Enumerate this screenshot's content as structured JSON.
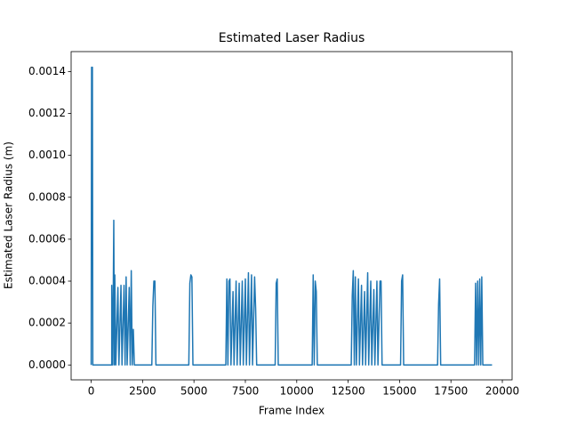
{
  "chart_data": {
    "type": "line",
    "title": "Estimated Laser Radius",
    "x_label": "Frame Index",
    "y_label": "Estimated Laser Radius (m)",
    "color": "#1f77b4",
    "x": [
      0,
      20,
      60,
      80,
      1000,
      1000,
      1050,
      1100,
      1130,
      1150,
      1200,
      1300,
      1350,
      1450,
      1500,
      1600,
      1650,
      1700,
      1750,
      1850,
      1900,
      1950,
      2000,
      2050,
      2100,
      2950,
      3000,
      3050,
      3100,
      3150,
      4750,
      4800,
      4850,
      4900,
      4950,
      6550,
      6600,
      6650,
      6700,
      6750,
      6800,
      6900,
      6950,
      7050,
      7100,
      7200,
      7250,
      7350,
      7400,
      7500,
      7550,
      7650,
      7700,
      7800,
      7850,
      7950,
      8000,
      8050,
      8950,
      9000,
      9050,
      9100,
      10750,
      10800,
      10850,
      10900,
      10950,
      11000,
      12650,
      12700,
      12750,
      12800,
      12850,
      12900,
      13000,
      13050,
      13150,
      13200,
      13300,
      13350,
      13450,
      13500,
      13600,
      13650,
      13750,
      13800,
      13900,
      13950,
      14050,
      14100,
      14150,
      15050,
      15100,
      15150,
      15200,
      16850,
      16900,
      16950,
      17000,
      18650,
      18700,
      18750,
      18800,
      18850,
      18900,
      18950,
      19000,
      19050,
      19500
    ],
    "values": [
      0,
      0.00142,
      0.00142,
      0,
      0,
      0.00038,
      0,
      0.00069,
      0,
      0.00043,
      0,
      0.00037,
      0,
      0.00038,
      0,
      0.00038,
      0,
      0.00042,
      0,
      0.00037,
      0,
      0.00045,
      0,
      0.00017,
      0,
      0,
      0.00028,
      0.0004,
      0.0004,
      0,
      0,
      0.00039,
      0.00043,
      0.00042,
      0,
      0,
      0.00041,
      0,
      0.0004,
      0.00041,
      0,
      0.00035,
      0,
      0.0004,
      0,
      0.00039,
      0,
      0.0004,
      0,
      0.00041,
      0,
      0.00044,
      0,
      0.00043,
      0,
      0.00042,
      0.00027,
      0,
      0,
      0.00039,
      0.00041,
      0,
      0,
      0.00043,
      0,
      0.0004,
      0.00035,
      0,
      0,
      0.00033,
      0.00045,
      0,
      0.00042,
      0,
      0.00041,
      0,
      0.00038,
      0,
      0.00035,
      0,
      0.00044,
      0,
      0.0004,
      0,
      0.00036,
      0,
      0.0004,
      0,
      0.0004,
      0.0004,
      0,
      0,
      0.0004,
      0.00043,
      0,
      0,
      0.00029,
      0.00041,
      0,
      0,
      0.00039,
      0,
      0.0004,
      0,
      0.00041,
      0,
      0.00042,
      0,
      0
    ],
    "xlim": [
      -975,
      20475
    ],
    "xticks": [
      0,
      2500,
      5000,
      7500,
      10000,
      12500,
      15000,
      17500,
      20000
    ],
    "ylim": [
      -7.1e-05,
      0.001495
    ],
    "yticks": [
      {
        "value": 0,
        "label": "0.0000"
      },
      {
        "value": 0.0002,
        "label": "0.0002"
      },
      {
        "value": 0.0004,
        "label": "0.0004"
      },
      {
        "value": 0.0006,
        "label": "0.0006"
      },
      {
        "value": 0.0008,
        "label": "0.0008"
      },
      {
        "value": 0.001,
        "label": "0.0010"
      },
      {
        "value": 0.0012,
        "label": "0.0012"
      },
      {
        "value": 0.0014,
        "label": "0.0014"
      }
    ]
  }
}
